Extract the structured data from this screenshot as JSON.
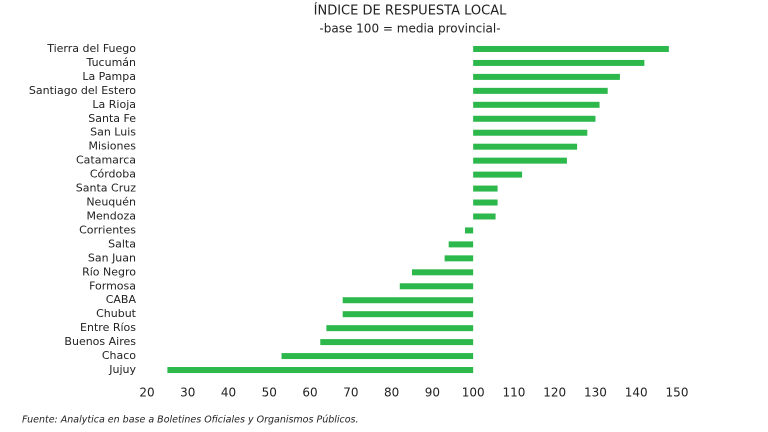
{
  "chart_data": {
    "type": "barh",
    "title": "ÍNDICE DE RESPUESTA LOCAL",
    "subtitle": "-base 100 = media provincial-",
    "source": "Fuente: Analytica en base a Boletines Oficiales y Organismos Públicos.",
    "categories": [
      "Tierra del Fuego",
      "Tucumán",
      "La Pampa",
      "Santiago del Estero",
      "La Rioja",
      "Santa Fe",
      "San Luis",
      "Misiones",
      "Catamarca",
      "Córdoba",
      "Santa Cruz",
      "Neuquén",
      "Mendoza",
      "Corrientes",
      "Salta",
      "San Juan",
      "Río Negro",
      "Formosa",
      "CABA",
      "Chubut",
      "Entre Ríos",
      "Buenos Aires",
      "Chaco",
      "Jujuy"
    ],
    "values": [
      148,
      142,
      136,
      133,
      131,
      130,
      128,
      125.5,
      123,
      112,
      106,
      106,
      105.5,
      98,
      94,
      93,
      85,
      82,
      68,
      68,
      64,
      62.5,
      53,
      25
    ],
    "bar_base": 100,
    "color": "#2db84b",
    "xlim": [
      20,
      150
    ],
    "xticks": [
      20,
      30,
      40,
      50,
      60,
      70,
      80,
      90,
      100,
      110,
      120,
      130,
      140,
      150
    ],
    "grid": false
  }
}
